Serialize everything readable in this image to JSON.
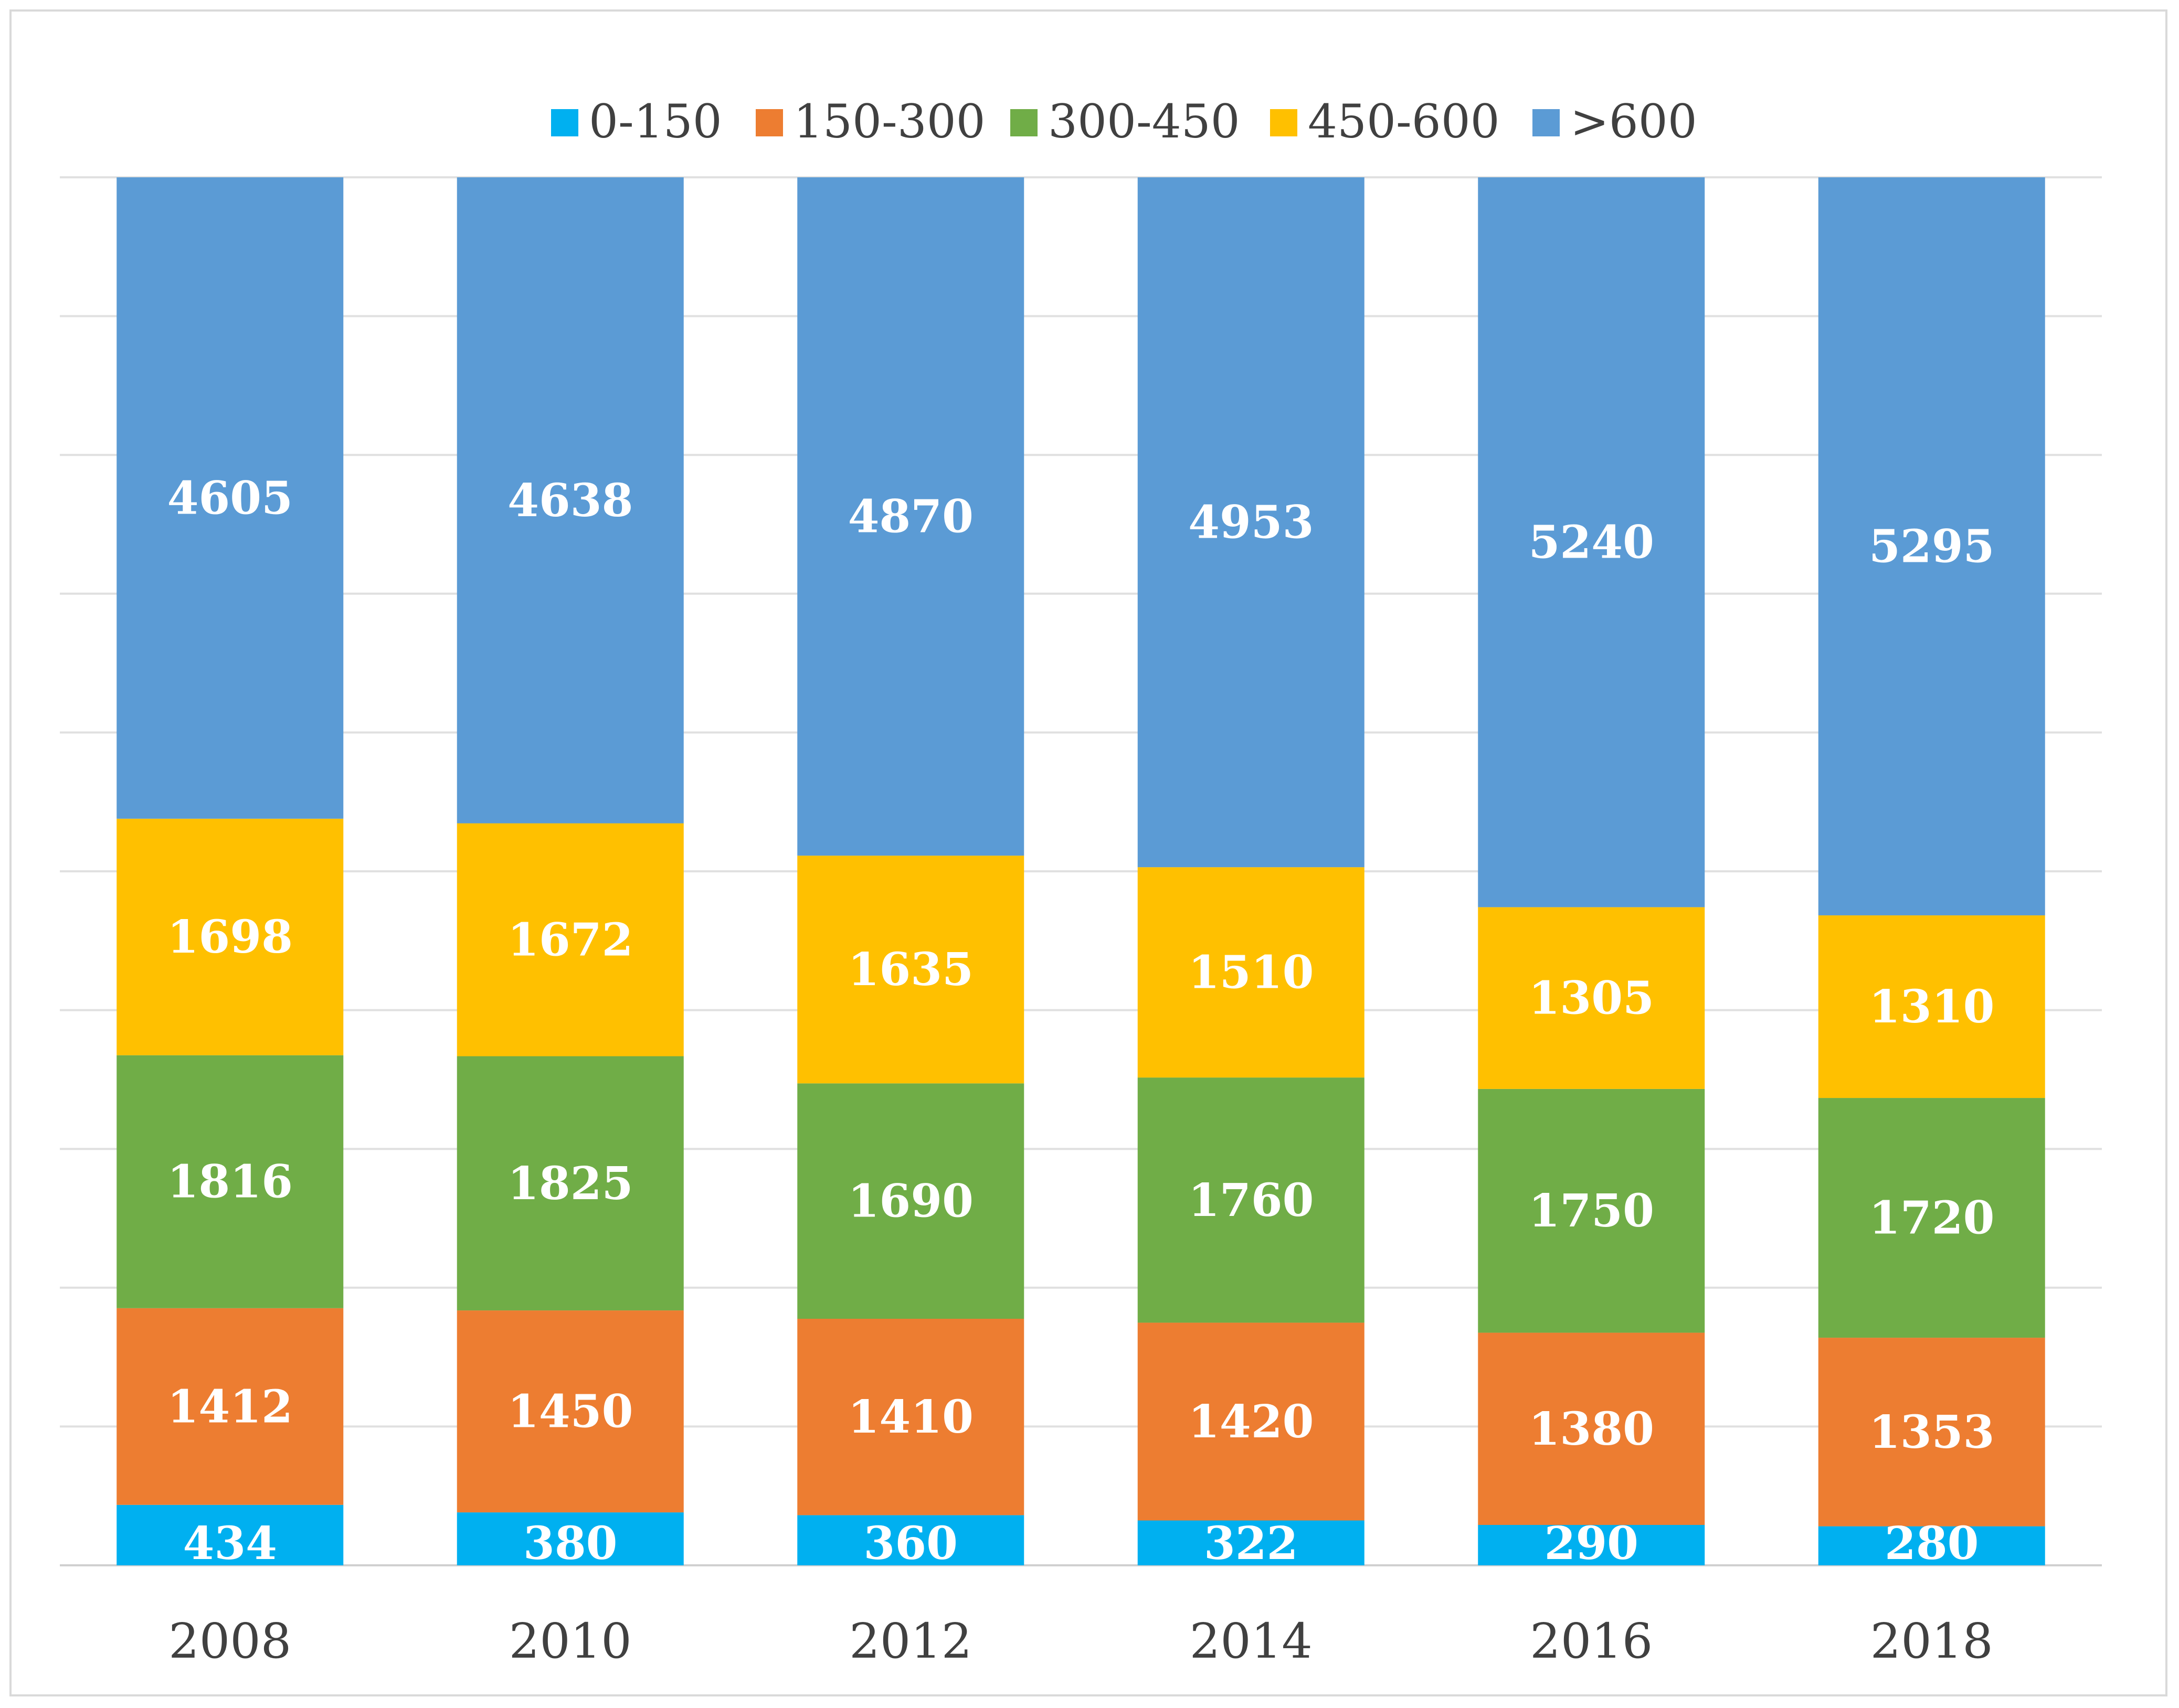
{
  "chart_data": {
    "type": "bar",
    "stacking": "percent",
    "title": "",
    "xlabel": "",
    "ylabel": "",
    "ylim": [
      0,
      100
    ],
    "grid": true,
    "legend_position": "top",
    "categories": [
      "2008",
      "2010",
      "2012",
      "2014",
      "2016",
      "2018"
    ],
    "series": [
      {
        "name": "0-150",
        "color": "#00B0F0",
        "values": [
          434,
          380,
          360,
          322,
          290,
          280
        ],
        "labels": [
          "434",
          "380",
          "360",
          "322",
          "290",
          "280"
        ]
      },
      {
        "name": "150-300",
        "color": "#ED7D31",
        "values": [
          1412,
          1450,
          1410,
          1420,
          1380,
          1353
        ],
        "labels": [
          "1412",
          "1450",
          "1410",
          "1420",
          "1380",
          "1353"
        ]
      },
      {
        "name": "300-450",
        "color": "#70AD47",
        "values": [
          1816,
          1825,
          1690,
          1760,
          1750,
          1720
        ],
        "labels": [
          "1816",
          "1825",
          "1690",
          "1760",
          "1750",
          "1720"
        ]
      },
      {
        "name": "450-600",
        "color": "#FFC000",
        "values": [
          1698,
          1672,
          1635,
          1510,
          1305,
          1310
        ],
        "labels": [
          "1698",
          "1672",
          "1635",
          "1510",
          "1305",
          "1310"
        ]
      },
      {
        "name": ">600",
        "color": "#5B9BD5",
        "values": [
          4605,
          4638,
          4870,
          4953,
          5240,
          5295
        ],
        "labels": [
          "4605",
          "4638",
          "4870",
          "4953",
          "5240",
          "5295"
        ]
      }
    ]
  }
}
